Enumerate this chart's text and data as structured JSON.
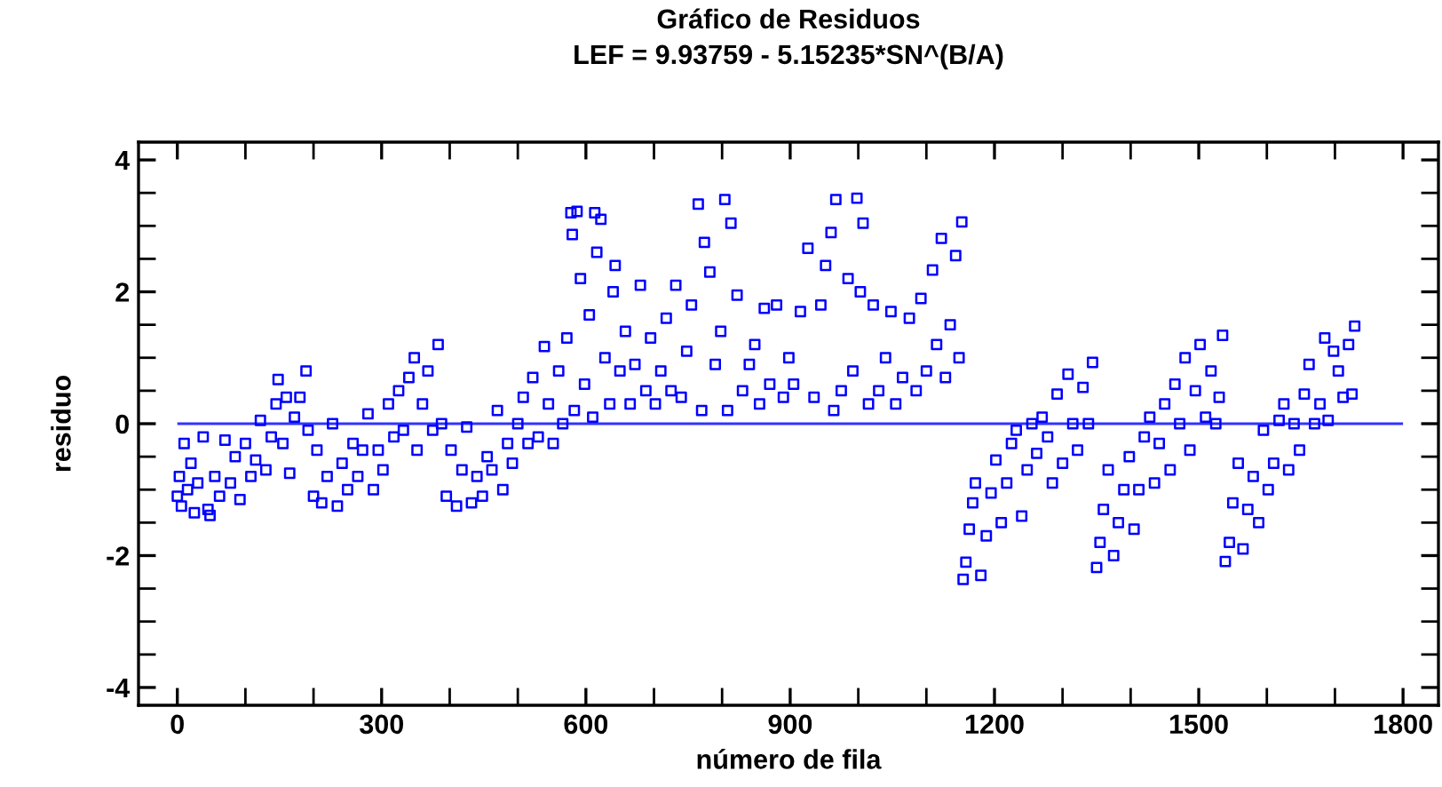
{
  "chart_data": {
    "type": "scatter",
    "title": "Gráfico de Residuos",
    "subtitle": "LEF = 9.93759 - 5.15235*SN^(B/A)",
    "xlabel": "número de fila",
    "ylabel": "residuo",
    "xlim": [
      -57,
      1852
    ],
    "ylim": [
      -4.27,
      4.27
    ],
    "xticks": [
      0,
      {
        "value": 100,
        "label": null
      },
      {
        "value": 200,
        "label": null
      },
      300,
      {
        "value": 400,
        "label": null
      },
      {
        "value": 500,
        "label": null
      },
      600,
      {
        "value": 700,
        "label": null
      },
      {
        "value": 800,
        "label": null
      },
      900,
      {
        "value": 1000,
        "label": null
      },
      {
        "value": 1100,
        "label": null
      },
      1200,
      {
        "value": 1300,
        "label": null
      },
      {
        "value": 1400,
        "label": null
      },
      1500,
      {
        "value": 1600,
        "label": null
      },
      {
        "value": 1700,
        "label": null
      },
      1800
    ],
    "yticks": [
      -4,
      {
        "value": -3.5,
        "label": null
      },
      {
        "value": -3,
        "label": null
      },
      {
        "value": -2.5,
        "label": null
      },
      -2,
      {
        "value": -1.5,
        "label": null
      },
      {
        "value": -1,
        "label": null
      },
      {
        "value": -0.5,
        "label": null
      },
      0,
      {
        "value": 0.5,
        "label": null
      },
      {
        "value": 1,
        "label": null
      },
      {
        "value": 1.5,
        "label": null
      },
      2,
      {
        "value": 2.5,
        "label": null
      },
      {
        "value": 3,
        "label": null
      },
      {
        "value": 3.5,
        "label": null
      },
      4
    ],
    "tick_labels": "xy",
    "grid": false,
    "legend": false,
    "marker": "square",
    "ref_lines": [
      {
        "axis": "y",
        "value": 0,
        "color": "#3333ff"
      }
    ],
    "series": [
      {
        "color": "#0000ff",
        "x": [
          0,
          3,
          6,
          10,
          15,
          20,
          25,
          30,
          38,
          45,
          48,
          55,
          62,
          70,
          78,
          85,
          92,
          100,
          108,
          115,
          122,
          130,
          138,
          145,
          148,
          155,
          160,
          165,
          172,
          180,
          189,
          192,
          200,
          205,
          212,
          220,
          228,
          235,
          242,
          250,
          258,
          265,
          272,
          280,
          288,
          295,
          302,
          310,
          318,
          325,
          332,
          340,
          348,
          352,
          360,
          368,
          375,
          383,
          388,
          395,
          402,
          410,
          418,
          425,
          432,
          440,
          448,
          455,
          462,
          470,
          478,
          485,
          492,
          500,
          508,
          515,
          522,
          530,
          539,
          545,
          552,
          560,
          566,
          572,
          578,
          580,
          583,
          587,
          592,
          598,
          605,
          610,
          613,
          616,
          622,
          628,
          635,
          640,
          643,
          650,
          658,
          665,
          672,
          680,
          688,
          695,
          702,
          710,
          718,
          725,
          732,
          740,
          748,
          755,
          765,
          770,
          774,
          782,
          790,
          798,
          804,
          808,
          813,
          822,
          830,
          840,
          848,
          855,
          862,
          870,
          880,
          890,
          898,
          905,
          915,
          926,
          935,
          945,
          952,
          960,
          964,
          967,
          975,
          985,
          992,
          998,
          1003,
          1007,
          1015,
          1022,
          1030,
          1040,
          1048,
          1055,
          1065,
          1075,
          1085,
          1092,
          1100,
          1109,
          1115,
          1122,
          1128,
          1135,
          1143,
          1148,
          1152,
          1154,
          1158,
          1163,
          1168,
          1172,
          1180,
          1188,
          1195,
          1202,
          1210,
          1218,
          1225,
          1232,
          1240,
          1248,
          1255,
          1262,
          1270,
          1278,
          1285,
          1292,
          1300,
          1308,
          1315,
          1322,
          1330,
          1338,
          1344,
          1350,
          1355,
          1360,
          1367,
          1375,
          1382,
          1390,
          1398,
          1405,
          1412,
          1420,
          1428,
          1435,
          1442,
          1450,
          1458,
          1465,
          1472,
          1480,
          1487,
          1495,
          1502,
          1510,
          1518,
          1525,
          1530,
          1535,
          1539,
          1545,
          1550,
          1558,
          1565,
          1572,
          1580,
          1588,
          1595,
          1602,
          1610,
          1618,
          1625,
          1632,
          1640,
          1648,
          1655,
          1662,
          1670,
          1678,
          1685,
          1690,
          1698,
          1705,
          1712,
          1720,
          1725,
          1729
        ],
        "values": [
          -1.1,
          -0.8,
          -1.25,
          -0.3,
          -1.0,
          -0.6,
          -1.35,
          -0.9,
          -0.2,
          -1.3,
          -1.39,
          -0.8,
          -1.1,
          -0.25,
          -0.9,
          -0.5,
          -1.15,
          -0.3,
          -0.8,
          -0.55,
          0.05,
          -0.7,
          -0.2,
          0.3,
          0.67,
          -0.3,
          0.4,
          -0.75,
          0.1,
          0.4,
          0.8,
          -0.1,
          -1.1,
          -0.4,
          -1.2,
          -0.8,
          0.0,
          -1.25,
          -0.6,
          -1.0,
          -0.3,
          -0.8,
          -0.4,
          0.15,
          -1.0,
          -0.4,
          -0.7,
          0.3,
          -0.2,
          0.5,
          -0.1,
          0.7,
          1.0,
          -0.4,
          0.3,
          0.8,
          -0.1,
          1.2,
          0.0,
          -1.1,
          -0.4,
          -1.25,
          -0.7,
          -0.05,
          -1.2,
          -0.8,
          -1.1,
          -0.5,
          -0.7,
          0.2,
          -1.0,
          -0.3,
          -0.6,
          0.0,
          0.4,
          -0.3,
          0.7,
          -0.2,
          1.17,
          0.3,
          -0.3,
          0.8,
          0.0,
          1.3,
          3.2,
          2.87,
          0.2,
          3.22,
          2.2,
          0.6,
          1.65,
          0.1,
          3.2,
          2.6,
          3.1,
          1.0,
          0.3,
          2.0,
          2.4,
          0.8,
          1.4,
          0.3,
          0.9,
          2.1,
          0.5,
          1.3,
          0.3,
          0.8,
          1.6,
          0.5,
          2.1,
          0.4,
          1.1,
          1.8,
          3.33,
          0.2,
          2.75,
          2.3,
          0.9,
          1.4,
          3.4,
          0.2,
          3.04,
          1.95,
          0.5,
          0.9,
          1.2,
          0.3,
          1.75,
          0.6,
          1.8,
          0.4,
          1.0,
          0.6,
          1.7,
          2.66,
          0.4,
          1.8,
          2.4,
          2.9,
          0.2,
          3.4,
          0.5,
          2.2,
          0.8,
          3.42,
          2.0,
          3.04,
          0.3,
          1.8,
          0.5,
          1.0,
          1.7,
          0.3,
          0.7,
          1.6,
          0.5,
          1.9,
          0.8,
          2.33,
          1.2,
          2.81,
          0.7,
          1.5,
          2.55,
          1.0,
          3.06,
          -2.36,
          -2.1,
          -1.6,
          -1.2,
          -0.9,
          -2.3,
          -1.7,
          -1.05,
          -0.55,
          -1.5,
          -0.9,
          -0.3,
          -0.1,
          -1.4,
          -0.7,
          0.0,
          -0.45,
          0.1,
          -0.2,
          -0.9,
          0.45,
          -0.6,
          0.75,
          0.0,
          -0.4,
          0.55,
          0.0,
          0.93,
          -2.18,
          -1.8,
          -1.3,
          -0.7,
          -2.0,
          -1.5,
          -1.0,
          -0.5,
          -1.6,
          -1.0,
          -0.2,
          0.1,
          -0.9,
          -0.3,
          0.3,
          -0.7,
          0.6,
          0.0,
          1.0,
          -0.4,
          0.5,
          1.2,
          0.1,
          0.8,
          0.0,
          0.4,
          1.34,
          -2.09,
          -1.8,
          -1.2,
          -0.6,
          -1.9,
          -1.3,
          -0.8,
          -1.5,
          -0.1,
          -1.0,
          -0.6,
          0.05,
          0.3,
          -0.7,
          0.0,
          -0.4,
          0.45,
          0.9,
          0.0,
          0.3,
          1.3,
          0.05,
          1.1,
          0.8,
          0.4,
          1.2,
          0.45,
          1.48
        ]
      }
    ]
  }
}
